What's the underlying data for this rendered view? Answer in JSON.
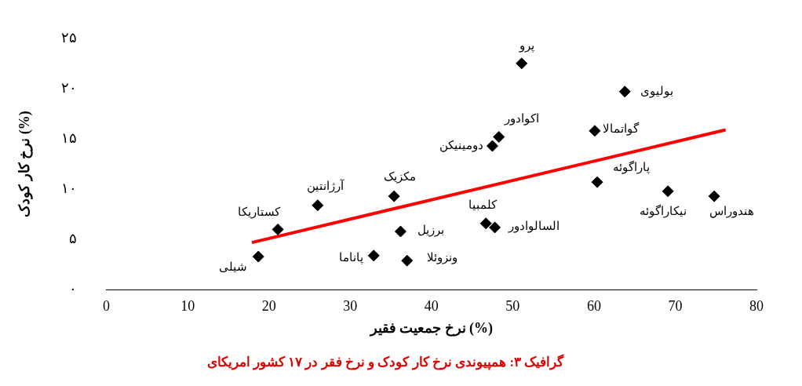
{
  "chart_data": {
    "type": "scatter",
    "title": "گرافیک ۳: همپیوندی نرخ کار کودک و نرخ فقر در ۱۷ کشور امریکای",
    "xlabel": "نرخ جمعیت فقیر (%)",
    "ylabel": "نرخ کار کودک (%)",
    "xlim": [
      0,
      80
    ],
    "xticks": [
      0,
      10,
      20,
      30,
      40,
      50,
      60,
      70,
      80
    ],
    "ylim": [
      0,
      25
    ],
    "yticks": [
      {
        "value": 0,
        "label": "۰"
      },
      {
        "value": 5,
        "label": "۵"
      },
      {
        "value": 10,
        "label": "۱۰"
      },
      {
        "value": 15,
        "label": "۱۵"
      },
      {
        "value": 20,
        "label": "۲۰"
      },
      {
        "value": 25,
        "label": "۲۵"
      }
    ],
    "grid": false,
    "legend": false,
    "marker": "diamond",
    "series": [
      {
        "type": "scatter",
        "color": "#000000",
        "x": [
          18.7,
          21.1,
          26.0,
          35.4,
          36.2,
          32.9,
          37.0,
          46.7,
          47.8,
          47.5,
          48.3,
          51.1,
          60.1,
          63.8,
          60.4,
          69.1,
          74.8
        ],
        "values": [
          3.3,
          6.0,
          8.4,
          9.3,
          5.8,
          3.4,
          2.9,
          6.6,
          6.2,
          14.3,
          15.2,
          22.5,
          15.8,
          19.7,
          10.7,
          9.8,
          9.3
        ]
      },
      {
        "type": "line",
        "color": "#ff0000",
        "marker": "none",
        "line_style": "solid",
        "x": [
          17.9,
          76.2
        ],
        "values": [
          4.7,
          15.9
        ]
      }
    ],
    "annotations": [
      {
        "text": "شیلی",
        "x": 18.7,
        "y": 3.3
      },
      {
        "text": "کستاریکا",
        "x": 21.1,
        "y": 6.0
      },
      {
        "text": "آرژانتین",
        "x": 26.0,
        "y": 8.4
      },
      {
        "text": "مکزیک",
        "x": 35.4,
        "y": 9.3
      },
      {
        "text": "برزیل",
        "x": 36.2,
        "y": 5.8
      },
      {
        "text": "پاناما",
        "x": 32.9,
        "y": 3.4
      },
      {
        "text": "ونزوئلا",
        "x": 37.0,
        "y": 2.9
      },
      {
        "text": "کلمبیا",
        "x": 46.7,
        "y": 6.6
      },
      {
        "text": "السالوادور",
        "x": 47.8,
        "y": 6.2
      },
      {
        "text": "دومینیکن",
        "x": 47.5,
        "y": 14.3
      },
      {
        "text": "اکوادور",
        "x": 48.3,
        "y": 15.2
      },
      {
        "text": "پرو",
        "x": 51.1,
        "y": 22.5
      },
      {
        "text": "گواتمالا",
        "x": 60.1,
        "y": 15.8
      },
      {
        "text": "بولیوی",
        "x": 63.8,
        "y": 19.7
      },
      {
        "text": "پاراگوئه",
        "x": 60.4,
        "y": 10.7
      },
      {
        "text": "نیکاراگوئه",
        "x": 69.1,
        "y": 9.8
      },
      {
        "text": "هندوراس",
        "x": 74.8,
        "y": 9.3
      }
    ]
  }
}
